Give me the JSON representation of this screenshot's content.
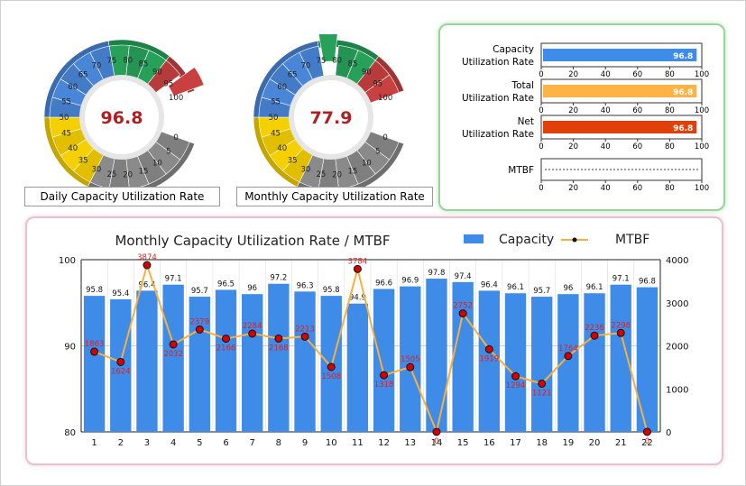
{
  "colors": {
    "gauge_yellow": "#f5d000",
    "gauge_blue": "#4a86d8",
    "gauge_green": "#27a05a",
    "gauge_red": "#c84040",
    "gauge_gray": "#8a8a8a",
    "gauge_value_text": "#b02020",
    "bar_blue": "#3f8be8",
    "bar_orange": "#ffb347",
    "bar_red": "#e0400a",
    "mtbf_line": "#f5b041",
    "mtbf_point": "#d40000",
    "mtbf_label": "#e02020"
  },
  "chart_data": [
    {
      "type": "gauge",
      "name": "Daily Capacity Utilization Rate",
      "title": "Daily Capacity Utilization Rate",
      "value": 96.8,
      "value_label": "96.8",
      "range": [
        0,
        100
      ],
      "ticks": [
        "0",
        "5",
        "10",
        "15",
        "20",
        "25",
        "30",
        "35",
        "40",
        "45",
        "50",
        "55",
        "60",
        "65",
        "70",
        "75",
        "80",
        "85",
        "90",
        "95",
        "100"
      ],
      "bands": [
        {
          "from": 0,
          "to": 30,
          "color": "gray"
        },
        {
          "from": 30,
          "to": 50,
          "color": "yellow"
        },
        {
          "from": 50,
          "to": 75,
          "color": "blue"
        },
        {
          "from": 75,
          "to": 90,
          "color": "green"
        },
        {
          "from": 90,
          "to": 100,
          "color": "red"
        }
      ],
      "highlighted_segment": "95-100"
    },
    {
      "type": "gauge",
      "name": "Monthly Capacity Utilization Rate",
      "title": "Monthly Capacity Utilization Rate",
      "value": 77.9,
      "value_label": "77.9",
      "range": [
        0,
        100
      ],
      "ticks": [
        "0",
        "5",
        "10",
        "15",
        "20",
        "25",
        "30",
        "35",
        "40",
        "45",
        "50",
        "55",
        "60",
        "65",
        "70",
        "75",
        "80",
        "85",
        "90",
        "95",
        "100"
      ],
      "bands": [
        {
          "from": 0,
          "to": 30,
          "color": "gray"
        },
        {
          "from": 30,
          "to": 50,
          "color": "yellow"
        },
        {
          "from": 50,
          "to": 75,
          "color": "blue"
        },
        {
          "from": 75,
          "to": 90,
          "color": "green"
        },
        {
          "from": 90,
          "to": 100,
          "color": "red"
        }
      ],
      "highlighted_segment": "75-80"
    },
    {
      "type": "bar",
      "orientation": "horizontal",
      "title": "",
      "categories": [
        "Capacity Utilization Rate",
        "Total Utilization Rate",
        "Net Utilization Rate",
        "MTBF"
      ],
      "category_lines": [
        [
          "Capacity",
          "Utilization Rate"
        ],
        [
          "Total",
          "Utilization Rate"
        ],
        [
          "Net",
          "Utilization Rate"
        ],
        [
          "MTBF"
        ]
      ],
      "values": [
        96.8,
        96.8,
        96.8,
        null
      ],
      "value_labels": [
        "96.8",
        "96.8",
        "96.8",
        ""
      ],
      "bar_colors": [
        "blue",
        "orange",
        "red",
        "none"
      ],
      "xlim": [
        0,
        100
      ],
      "xticks": [
        "0",
        "20",
        "40",
        "60",
        "80",
        "100"
      ]
    },
    {
      "type": "bar+line",
      "title": "Monthly Capacity Utilization Rate / MTBF",
      "legend": [
        {
          "name": "Capacity",
          "marker": "bar"
        },
        {
          "name": "MTBF",
          "marker": "line-point"
        }
      ],
      "legend_position": "top-right",
      "categories": [
        "1",
        "2",
        "3",
        "4",
        "5",
        "6",
        "7",
        "8",
        "9",
        "10",
        "11",
        "12",
        "13",
        "14",
        "15",
        "16",
        "17",
        "18",
        "19",
        "20",
        "21",
        "22"
      ],
      "series": [
        {
          "name": "Capacity",
          "type": "bar",
          "axis": "left",
          "values": [
            95.8,
            95.4,
            96.4,
            97.1,
            95.7,
            96.5,
            96,
            97.2,
            96.3,
            95.8,
            94.9,
            96.6,
            96.9,
            97.8,
            97.4,
            96.4,
            96.1,
            95.7,
            96,
            96.1,
            97.1,
            96.8
          ],
          "labels": [
            "95.8",
            "95.4",
            "96.4",
            "97.1",
            "95.7",
            "96.5",
            "96",
            "97.2",
            "96.3",
            "95.8",
            "94.9",
            "96.6",
            "96.9",
            "97.8",
            "97.4",
            "96.4",
            "96.1",
            "95.7",
            "96",
            "96.1",
            "97.1",
            "96.8"
          ]
        },
        {
          "name": "MTBF",
          "type": "line",
          "axis": "right",
          "values": [
            1863,
            1624,
            3874,
            2032,
            2379,
            2166,
            2284,
            2168,
            2213,
            1508,
            3784,
            1318,
            1505,
            0,
            2752,
            1919,
            1294,
            1121,
            1764,
            2236,
            2298,
            0
          ],
          "labels": [
            "1863",
            "1624",
            "3874",
            "2032",
            "2379",
            "2166",
            "2284",
            "2168",
            "2213",
            "1508",
            "3784",
            "1318",
            "1505",
            "0",
            "2752",
            "1919",
            "1294",
            "1121",
            "1764",
            "2236",
            "2298",
            "0"
          ]
        }
      ],
      "ylim_left": [
        80,
        100
      ],
      "yticks_left": [
        "80",
        "90",
        "100"
      ],
      "ylim_right": [
        0,
        4000
      ],
      "yticks_right": [
        "0",
        "1000",
        "2000",
        "3000",
        "4000"
      ],
      "grid": true
    }
  ]
}
